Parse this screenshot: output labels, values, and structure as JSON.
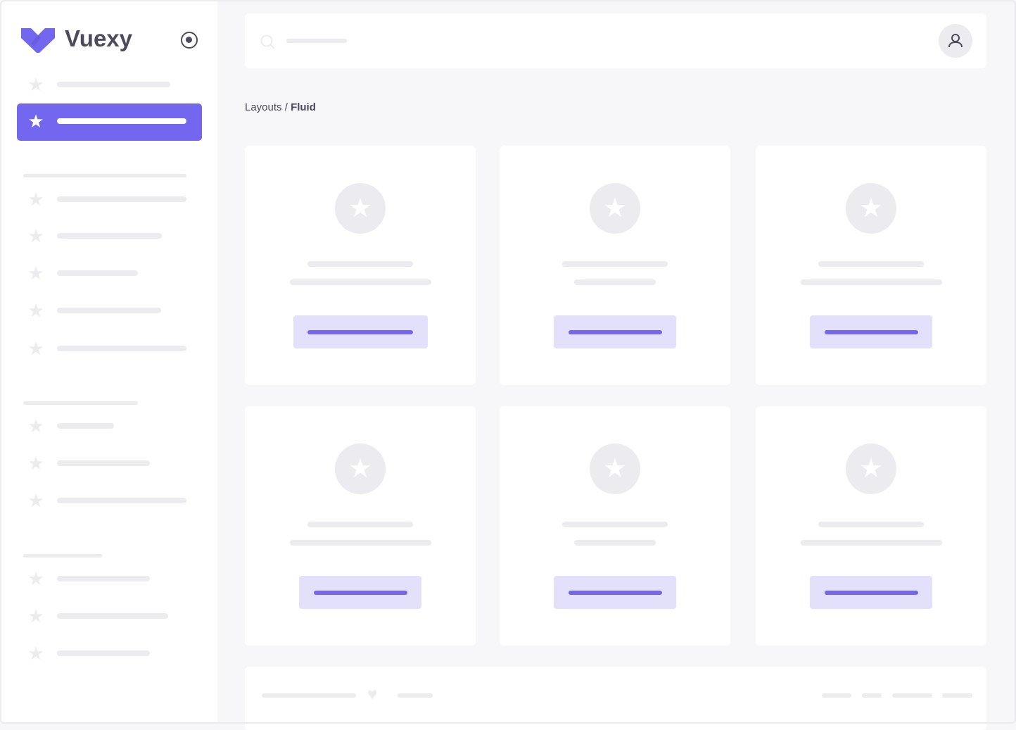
{
  "brand": {
    "name": "Vuexy",
    "logo": "vuexy-logo-icon",
    "collapse_icon": "radio-circle-icon"
  },
  "header": {
    "search_icon": "search-icon",
    "avatar_icon": "user-icon"
  },
  "breadcrumb": {
    "parent": "Layouts",
    "separator": " / ",
    "current": "Fluid"
  },
  "footer": {
    "icon": "heart-icon"
  },
  "colors": {
    "primary": "#7367f0",
    "primary_light": "#e3e0fb",
    "placeholder": "#ebebf0",
    "background": "#f7f7f9",
    "text": "#4b4b5c"
  }
}
